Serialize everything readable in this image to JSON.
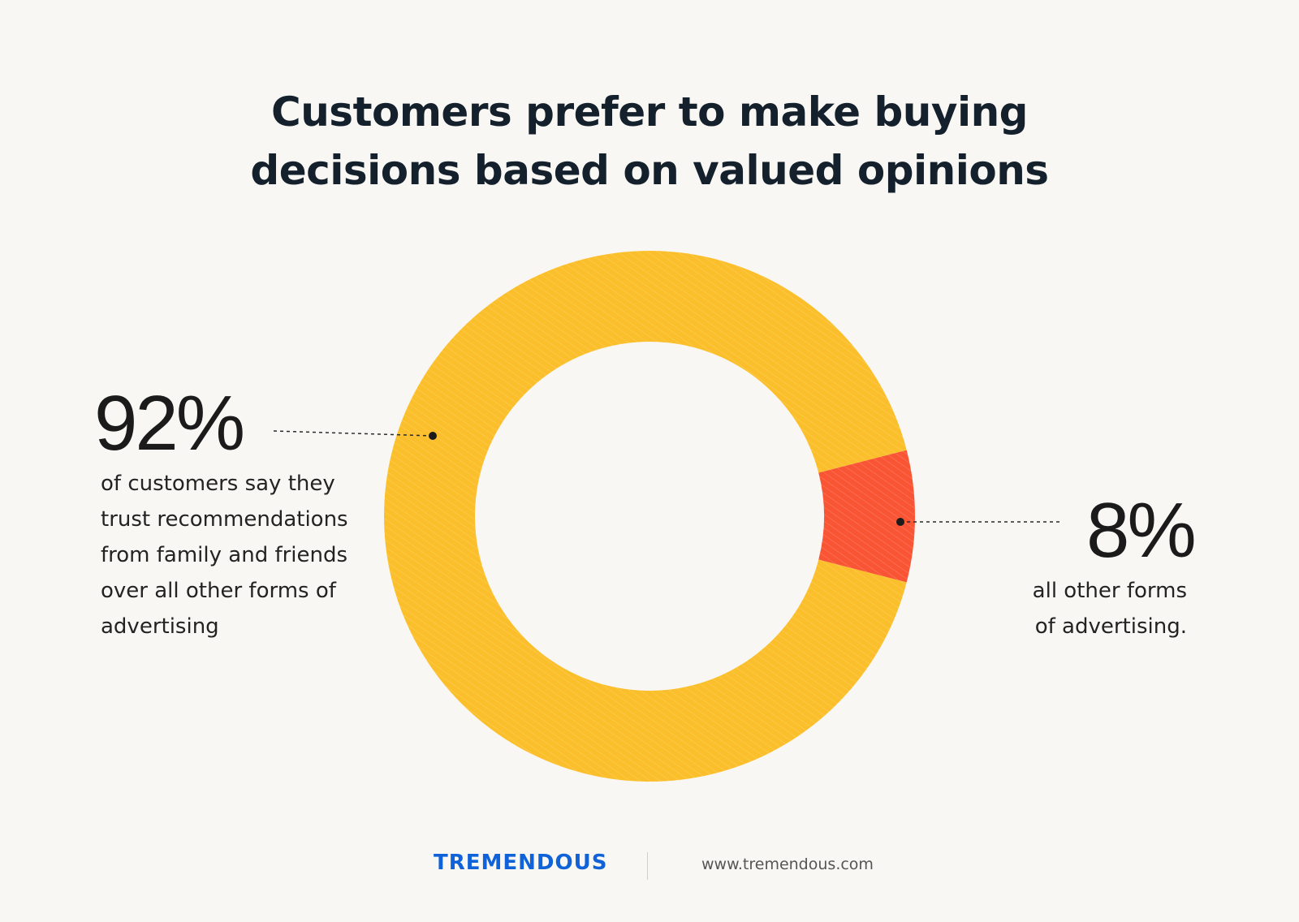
{
  "title_lines": [
    "Customers prefer to make buying",
    "decisions based on valued opinions"
  ],
  "chart_data": {
    "type": "pie",
    "style": "donut",
    "title": "Customers prefer to make buying decisions based on valued opinions",
    "slices": [
      {
        "label": "92%",
        "value": 92,
        "description": [
          "of customers say they",
          "trust recommendations",
          "from family and friends",
          "over all other forms of",
          "advertising"
        ],
        "color": "#fcbf2c"
      },
      {
        "label": "8%",
        "value": 8,
        "description": [
          "all other forms",
          "of advertising."
        ],
        "color": "#f95535"
      }
    ]
  },
  "footer": {
    "brand": "TREMENDOUS",
    "url": "www.tremendous.com",
    "brand_color": "#1062d9"
  }
}
